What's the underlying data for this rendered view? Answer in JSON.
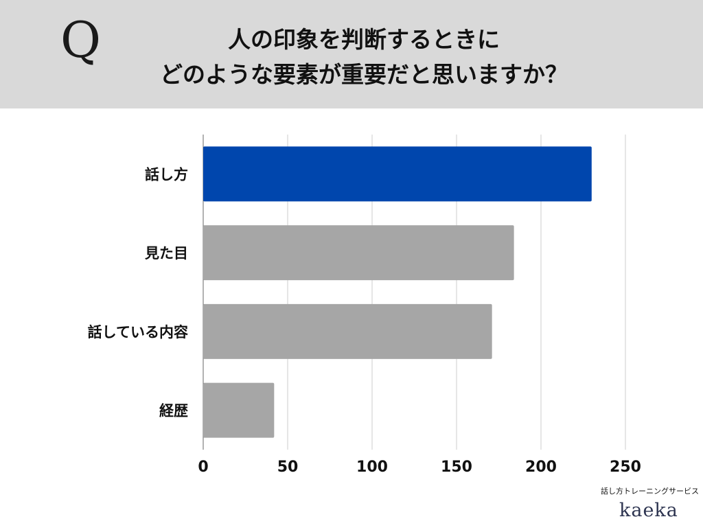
{
  "header": {
    "q_mark": "Q",
    "title_line1": "人の印象を判断するときに",
    "title_line2": "どのような要素が重要だと思いますか？"
  },
  "brand": {
    "caption": "話し方トレーニングサービス",
    "logo": "kaeka"
  },
  "colors": {
    "highlight_bar": "#0046ad",
    "bar": "#a6a6a6",
    "grid": "#cccccc",
    "header_bg": "#d9d9d9"
  },
  "chart_data": {
    "type": "bar",
    "orientation": "horizontal",
    "title": "",
    "xlabel": "",
    "ylabel": "",
    "categories": [
      "話し方",
      "見た目",
      "話している内容",
      "経歴"
    ],
    "values": [
      230,
      184,
      171,
      42
    ],
    "highlight_index": 0,
    "xlim": [
      0,
      250
    ],
    "xticks": [
      0,
      50,
      100,
      150,
      200,
      250
    ],
    "grid": true
  }
}
